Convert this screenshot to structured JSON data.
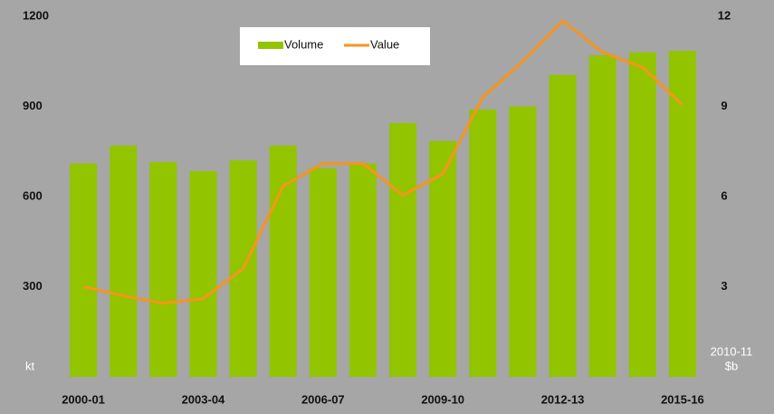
{
  "chart_data": {
    "type": "bar_line",
    "categories": [
      "2000-01",
      null,
      null,
      "2003-04",
      null,
      null,
      "2006-07",
      null,
      null,
      "2009-10",
      null,
      null,
      "2012-13",
      null,
      null,
      "2015-16"
    ],
    "series": [
      {
        "name": "Volume",
        "type": "bar",
        "color": "#92c400",
        "values": [
          710,
          770,
          715,
          685,
          720,
          770,
          695,
          710,
          845,
          785,
          890,
          900,
          1005,
          1070,
          1080,
          1085
        ]
      },
      {
        "name": "Value",
        "type": "line",
        "axis": "y2",
        "color": "#f7941d",
        "values": [
          3.0,
          2.7,
          2.45,
          2.6,
          3.6,
          6.35,
          7.1,
          7.1,
          6.05,
          6.75,
          9.3,
          10.5,
          11.85,
          10.8,
          10.3,
          9.05
        ]
      }
    ],
    "y_label": "kt",
    "y2_label": [
      "2010-11",
      "$b"
    ],
    "ylim": [
      0,
      1200
    ],
    "yticks": [
      300,
      600,
      900,
      1200
    ],
    "y2lim": [
      0,
      12
    ],
    "y2ticks": [
      3,
      6,
      9,
      12
    ],
    "legend": "top"
  }
}
